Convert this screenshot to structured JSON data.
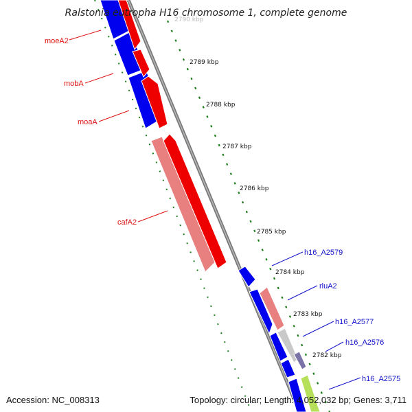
{
  "title": "Ralstonia eutropha H16 chromosome 1, complete genome",
  "footer": {
    "accession": "Accession: NC_008313",
    "topology": "Topology: circular; Length: 4,052,032 bp; Genes: 3,711"
  },
  "colors": {
    "forward_cds": "#ee0000",
    "reverse_cds": "#0000ee",
    "rna": "#e88080",
    "backbone": "#8c8c8c",
    "kbp_ticks": "#1e7d1e",
    "red_label": "#dd1111",
    "blue_label": "#1111cc"
  },
  "kbp_ticks": [
    {
      "label": "2790 kbp",
      "faded": true
    },
    {
      "label": "2789 kbp",
      "faded": false
    },
    {
      "label": "2788 kbp",
      "faded": false
    },
    {
      "label": "2787 kbp",
      "faded": false
    },
    {
      "label": "2786 kbp",
      "faded": false
    },
    {
      "label": "2785 kbp",
      "faded": false
    },
    {
      "label": "2784 kbp",
      "faded": false
    },
    {
      "label": "2783 kbp",
      "faded": false
    },
    {
      "label": "2782 kbp",
      "faded": false
    }
  ],
  "gene_labels": [
    {
      "text": "moeA2",
      "color": "red"
    },
    {
      "text": "mobA",
      "color": "red"
    },
    {
      "text": "moaA",
      "color": "red"
    },
    {
      "text": "cafA2",
      "color": "red"
    },
    {
      "text": "h16_A2579",
      "color": "blue"
    },
    {
      "text": "rluA2",
      "color": "blue"
    },
    {
      "text": "h16_A2577",
      "color": "blue"
    },
    {
      "text": "h16_A2576",
      "color": "blue"
    },
    {
      "text": "h16_A2575",
      "color": "blue"
    }
  ]
}
